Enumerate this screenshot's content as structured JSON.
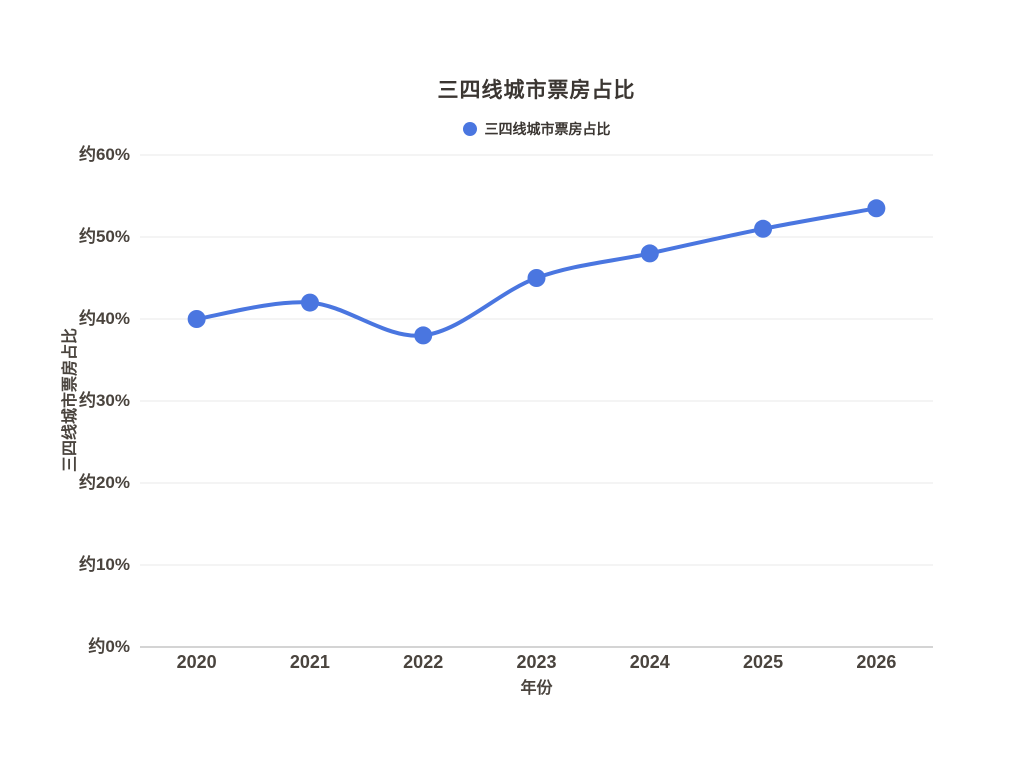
{
  "chart_data": {
    "type": "line",
    "title": "三四线城市票房占比",
    "legend": [
      {
        "label": "三四线城市票房占比",
        "color": "#4a76e0"
      }
    ],
    "legend_position": "top",
    "xlabel": "年份",
    "ylabel": "三四线城市票房占比",
    "categories": [
      "2020",
      "2021",
      "2022",
      "2023",
      "2024",
      "2025",
      "2026"
    ],
    "series": [
      {
        "name": "三四线城市票房占比",
        "values": [
          40,
          42,
          38,
          45,
          48,
          51,
          53.5
        ]
      }
    ],
    "ylim": [
      0,
      60
    ],
    "ytick_step": 10,
    "ytick_labels": [
      "约0%",
      "约10%",
      "约20%",
      "约30%",
      "约40%",
      "约50%",
      "约60%"
    ],
    "grid": "horizontal",
    "line_smooth": true,
    "colors": {
      "line": "#4a76e0",
      "point": "#4a76e0",
      "grid": "#e8e8e8",
      "axis_line": "#d4d4d4",
      "title_text": "#3b3632",
      "tick_text": "#4a443e"
    }
  }
}
